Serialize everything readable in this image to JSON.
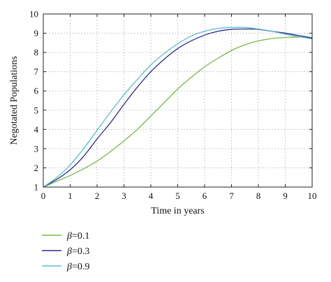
{
  "chart_data": {
    "type": "line",
    "title": "",
    "xlabel": "Time in years",
    "ylabel": "Negotated Populations",
    "xlim": [
      0,
      10
    ],
    "ylim": [
      1,
      10
    ],
    "xticks": [
      "0",
      "1",
      "2",
      "3",
      "4",
      "5",
      "6",
      "7",
      "8",
      "9",
      "10"
    ],
    "yticks": [
      "1",
      "2",
      "3",
      "4",
      "5",
      "6",
      "7",
      "8",
      "9",
      "10"
    ],
    "grid": true,
    "grid_style": "dotted",
    "legend_position": "below-left",
    "series": [
      {
        "name": "β=0.1",
        "legend_prefix": "β",
        "legend_value": "=0.1",
        "color": "#7ab648",
        "x": [
          0,
          0.5,
          1,
          1.5,
          2,
          2.5,
          3,
          3.5,
          4,
          4.5,
          5,
          5.5,
          6,
          6.5,
          7,
          7.5,
          8,
          8.5,
          9,
          9.5,
          10
        ],
        "y": [
          1.0,
          1.3,
          1.6,
          1.95,
          2.35,
          2.85,
          3.4,
          4.0,
          4.7,
          5.4,
          6.1,
          6.7,
          7.25,
          7.7,
          8.1,
          8.4,
          8.6,
          8.72,
          8.78,
          8.8,
          8.78
        ]
      },
      {
        "name": "β=0.3",
        "legend_prefix": "β",
        "legend_value": "=0.3",
        "color": "#2e2a8c",
        "x": [
          0,
          0.5,
          1,
          1.5,
          2,
          2.5,
          3,
          3.5,
          4,
          4.5,
          5,
          5.5,
          6,
          6.5,
          7,
          7.5,
          8,
          8.5,
          9,
          9.5,
          10
        ],
        "y": [
          1.0,
          1.4,
          1.9,
          2.6,
          3.5,
          4.35,
          5.3,
          6.2,
          7.0,
          7.65,
          8.2,
          8.6,
          8.9,
          9.1,
          9.2,
          9.22,
          9.2,
          9.1,
          9.0,
          8.88,
          8.75
        ]
      },
      {
        "name": "β=0.9",
        "legend_prefix": "β",
        "legend_value": "=0.9",
        "color": "#5bbfcf",
        "x": [
          0,
          0.5,
          1,
          1.5,
          2,
          2.5,
          3,
          3.5,
          4,
          4.5,
          5,
          5.5,
          6,
          6.5,
          7,
          7.5,
          8,
          8.5,
          9,
          9.5,
          10
        ],
        "y": [
          1.0,
          1.5,
          2.15,
          3.0,
          3.95,
          4.9,
          5.8,
          6.6,
          7.35,
          7.95,
          8.45,
          8.85,
          9.1,
          9.25,
          9.3,
          9.3,
          9.22,
          9.1,
          8.95,
          8.82,
          8.7
        ]
      }
    ]
  }
}
